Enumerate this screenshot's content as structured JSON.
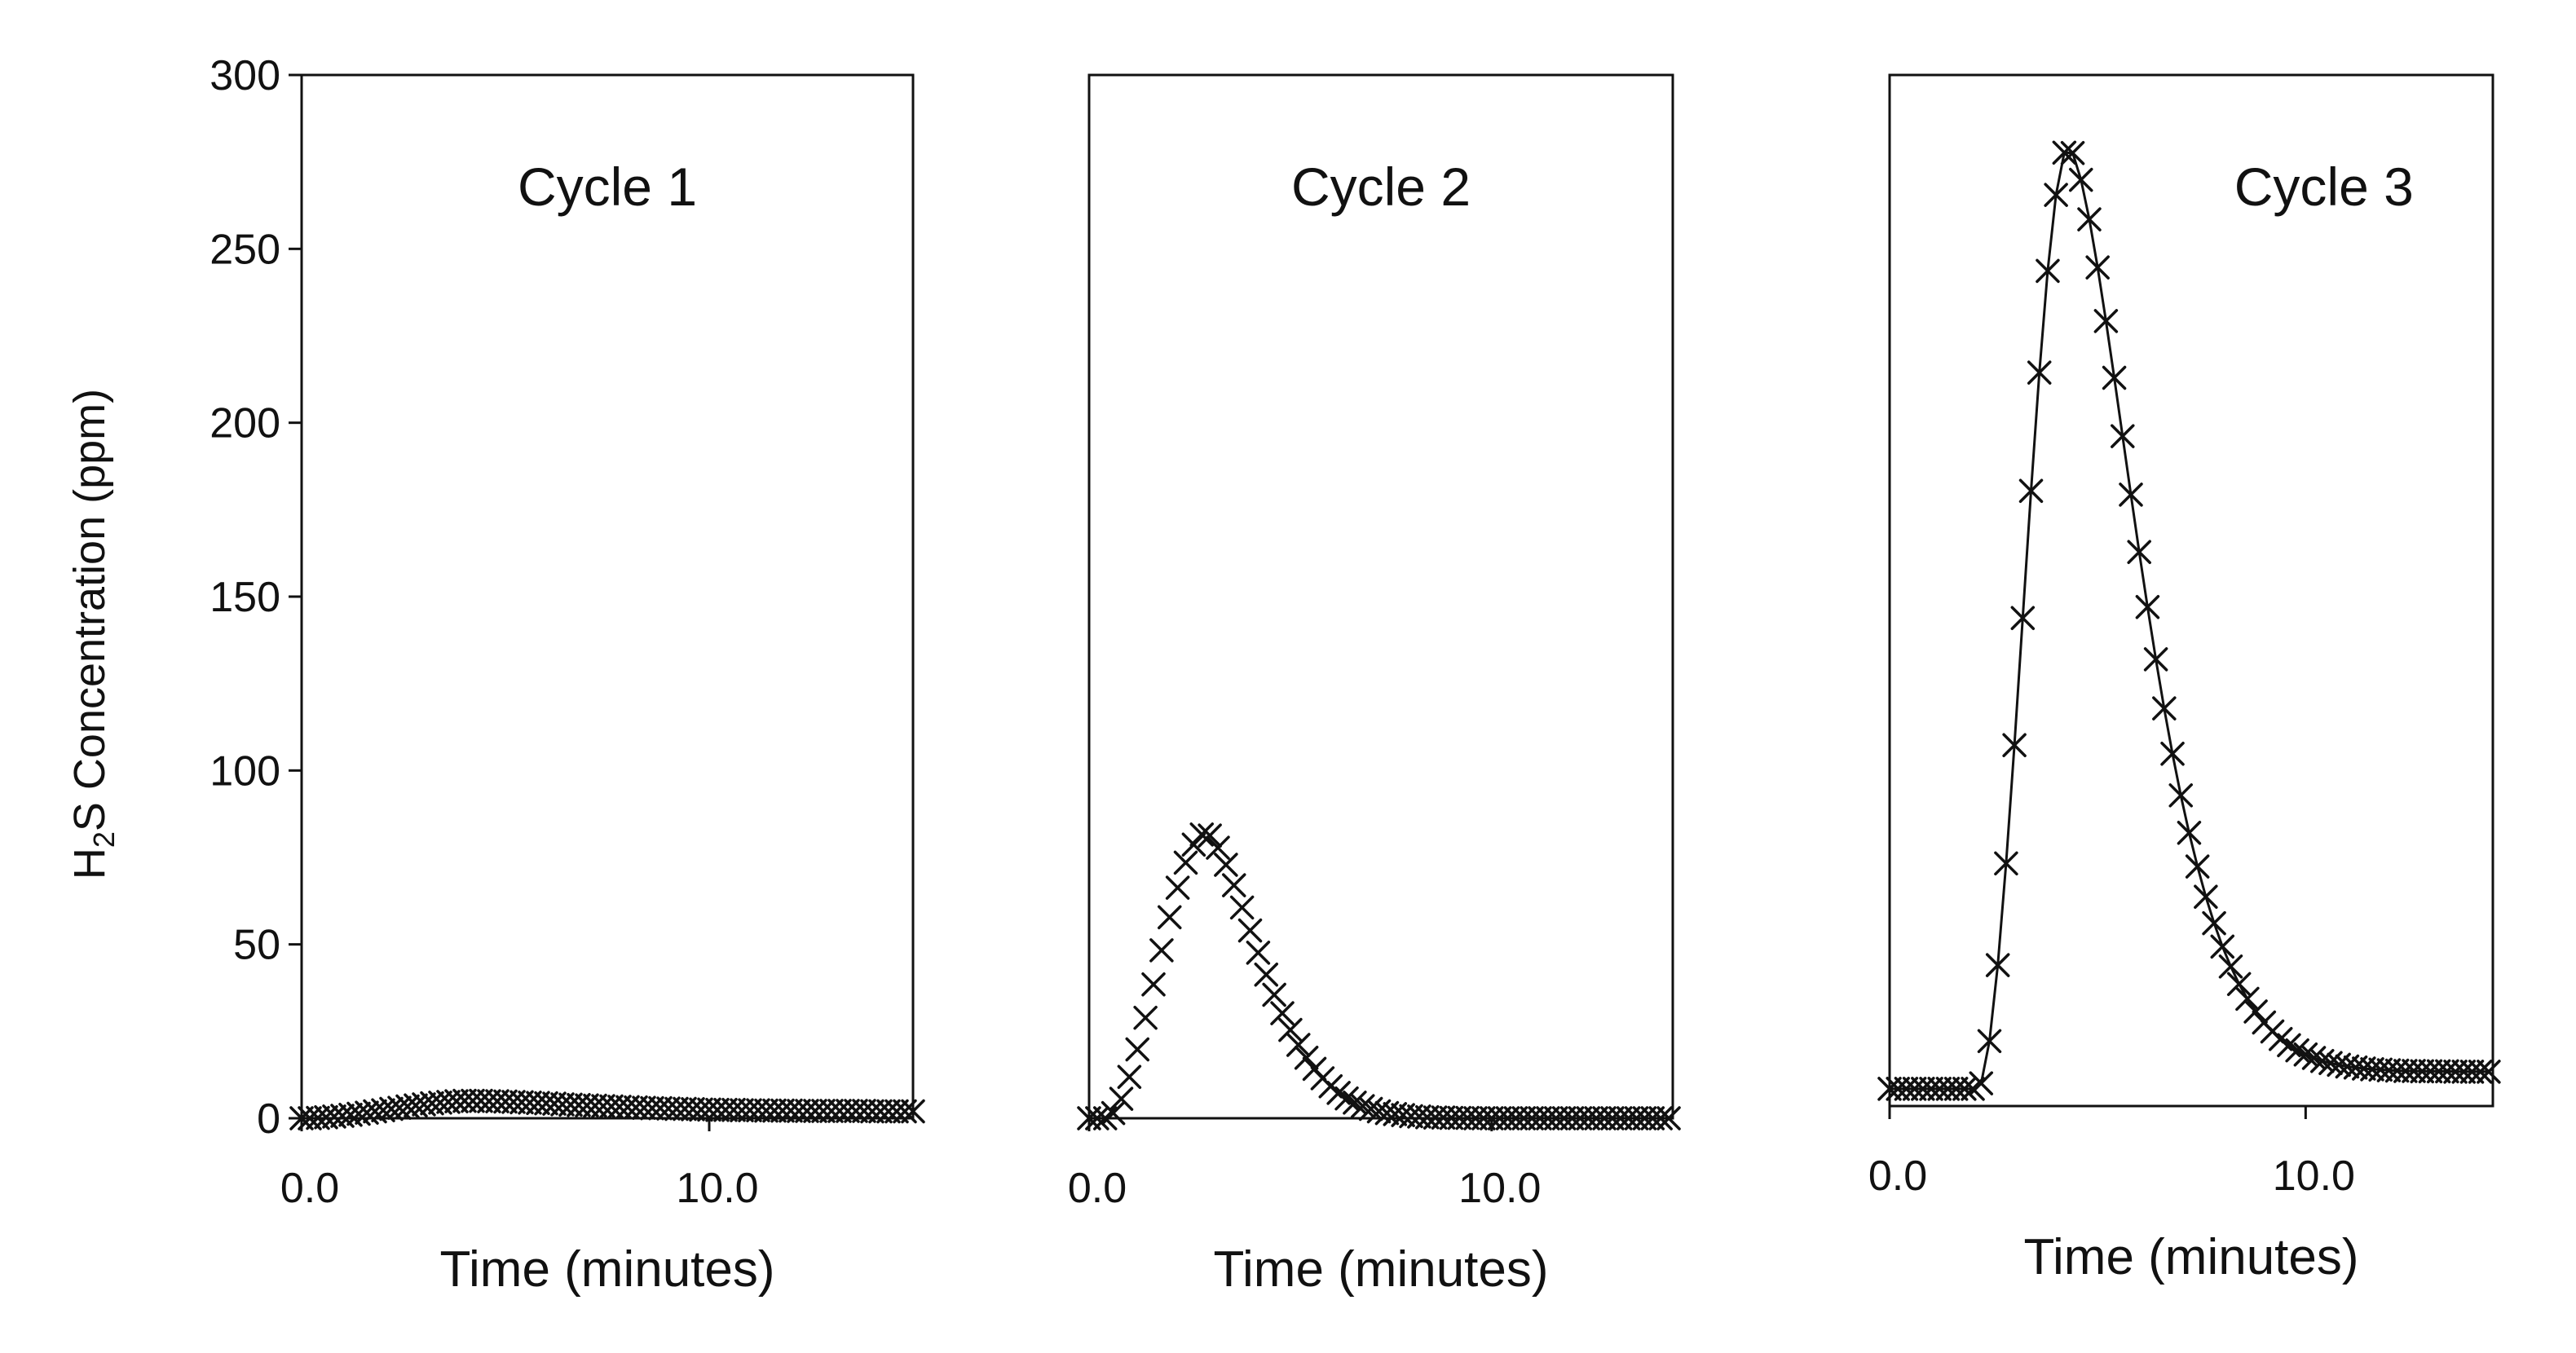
{
  "chart_data": {
    "y_axis_label": {
      "prefix": "H",
      "subscript": "2",
      "suffix": "S Concentration (ppm)"
    },
    "y_ticks": [
      "0",
      "50",
      "100",
      "150",
      "200",
      "250",
      "300"
    ],
    "y_tick_values": [
      0,
      50,
      100,
      150,
      200,
      250,
      300
    ],
    "marker": "x",
    "marker_color": "#111111",
    "panels": [
      {
        "type": "scatter",
        "title": "Cycle 1",
        "xlabel": "Time (minutes)",
        "x_ticks": [
          {
            "value": 0,
            "label": "0.0"
          },
          {
            "value": 10,
            "label": "10.0"
          }
        ],
        "xlim": [
          0,
          15
        ],
        "ylim": [
          0,
          300
        ],
        "connect_line": false,
        "curve": {
          "start": 0.0,
          "end": 15.0,
          "step": 0.2,
          "baseline": 0,
          "onset": 0.0,
          "peak_time": 4.2,
          "peak": 5,
          "decay_tau": 4.0,
          "tail": 2
        }
      },
      {
        "type": "scatter",
        "title": "Cycle 2",
        "xlabel": "Time (minutes)",
        "x_ticks": [
          {
            "value": 0,
            "label": "0.0"
          },
          {
            "value": 10,
            "label": "10.0"
          }
        ],
        "xlim": [
          0,
          14.5
        ],
        "ylim": [
          0,
          300
        ],
        "connect_line": false,
        "curve": {
          "start": 0.0,
          "end": 14.5,
          "step": 0.2,
          "baseline": 0,
          "onset": 0.4,
          "peak_time": 2.9,
          "peak": 82,
          "decay_tau": 1.9,
          "tail": 0
        }
      },
      {
        "type": "line",
        "title": "Cycle 3",
        "xlabel": "Time (minutes)",
        "x_ticks": [
          {
            "value": 0,
            "label": "0.0"
          },
          {
            "value": 10,
            "label": "10.0"
          }
        ],
        "xlim": [
          0,
          14.5
        ],
        "ylim": [
          0,
          300
        ],
        "connect_line": true,
        "curve": {
          "start": 0.0,
          "end": 14.5,
          "step": 0.2,
          "baseline": 5,
          "onset": 2.1,
          "peak_time": 4.3,
          "peak": 279,
          "decay_tau": 2.4,
          "tail": 10
        }
      }
    ]
  }
}
